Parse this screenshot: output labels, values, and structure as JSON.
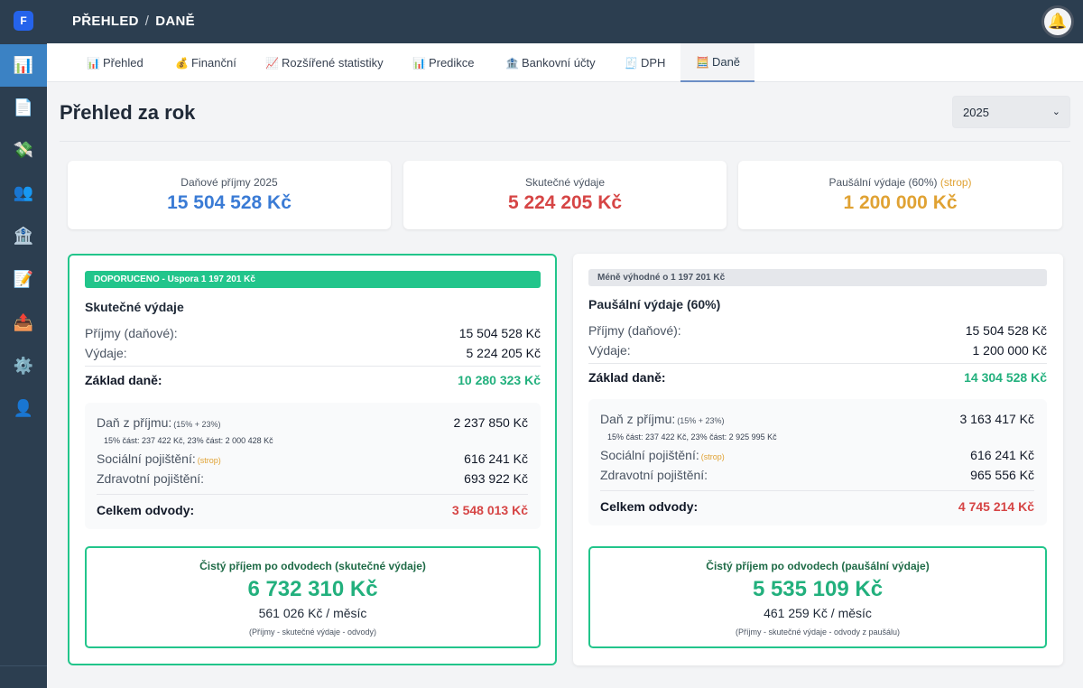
{
  "app": {
    "logo_letter": "F"
  },
  "header": {
    "crumb_1": "PŘEHLED",
    "separator": "/",
    "crumb_2": "DANĚ",
    "bell_icon": "🔔"
  },
  "sidebar": [
    {
      "icon": "📊",
      "name": "chart-icon",
      "active": true
    },
    {
      "icon": "📄",
      "name": "document-icon"
    },
    {
      "icon": "💸",
      "name": "money-icon"
    },
    {
      "icon": "👥",
      "name": "users-icon"
    },
    {
      "icon": "🏦",
      "name": "bank-icon"
    },
    {
      "icon": "📝",
      "name": "memo-icon"
    },
    {
      "icon": "📤",
      "name": "outbox-icon"
    },
    {
      "icon": "⚙️",
      "name": "gear-icon"
    },
    {
      "icon": "👤",
      "name": "user-icon"
    }
  ],
  "tabs": [
    {
      "icon": "📊",
      "label": "Přehled"
    },
    {
      "icon": "💰",
      "label": "Finanční"
    },
    {
      "icon": "📈",
      "label": "Rozšířené statistiky"
    },
    {
      "icon": "📊",
      "label": "Predikce"
    },
    {
      "icon": "🏦",
      "label": "Bankovní účty"
    },
    {
      "icon": "🧾",
      "label": "DPH"
    },
    {
      "icon": "🧮",
      "label": "Daně",
      "active": true
    }
  ],
  "page": {
    "title": "Přehled za rok",
    "year_selected": "2025",
    "chevron": "⌄"
  },
  "stats": {
    "income": {
      "label": "Daňové příjmy 2025",
      "value": "15 504 528 Kč",
      "color": "#3a7bd5"
    },
    "actual": {
      "label": "Skutečné výdaje",
      "value": "5 224 205 Kč",
      "color": "#d64545"
    },
    "flat": {
      "label": "Paušální výdaje (60%)",
      "label_extra": "(strop)",
      "value": "1 200 000 Kč",
      "color": "#e0a233"
    }
  },
  "left": {
    "badge": "DOPORUCENO - Uspora 1 197 201 Kč",
    "title": "Skutečné výdaje",
    "income_label": "Příjmy (daňové):",
    "income_value": "15 504 528 Kč",
    "expense_label": "Výdaje:",
    "expense_value": "5 224 205 Kč",
    "base_label": "Základ daně:",
    "base_value": "10 280 323 Kč",
    "tax_label": "Daň z příjmu:",
    "tax_rates": "(15% + 23%)",
    "tax_value": "2 237 850 Kč",
    "tax_note": "15% část: 237 422 Kč, 23% část: 2 000 428 Kč",
    "social_label": "Sociální pojištění:",
    "social_cap": "(strop)",
    "social_value": "616 241 Kč",
    "health_label": "Zdravotní pojištění:",
    "health_value": "693 922 Kč",
    "total_label": "Celkem odvody:",
    "total_value": "3 548 013 Kč",
    "net_title": "Čistý příjem po odvodech (skutečné výdaje)",
    "net_value": "6 732 310 Kč",
    "net_month": "561 026 Kč / měsíc",
    "net_formula": "(Příjmy - skutečné výdaje - odvody)"
  },
  "right": {
    "badge": "Méně výhodné o 1 197 201 Kč",
    "title": "Paušální výdaje (60%)",
    "income_label": "Příjmy (daňové):",
    "income_value": "15 504 528 Kč",
    "expense_label": "Výdaje:",
    "expense_value": "1 200 000 Kč",
    "base_label": "Základ daně:",
    "base_value": "14 304 528 Kč",
    "tax_label": "Daň z příjmu:",
    "tax_rates": "(15% + 23%)",
    "tax_value": "3 163 417 Kč",
    "tax_note": "15% část: 237 422 Kč, 23% část: 2 925 995 Kč",
    "social_label": "Sociální pojištění:",
    "social_cap": "(strop)",
    "social_value": "616 241 Kč",
    "health_label": "Zdravotní pojištění:",
    "health_value": "965 556 Kč",
    "total_label": "Celkem odvody:",
    "total_value": "4 745 214 Kč",
    "net_title": "Čistý příjem po odvodech (paušální výdaje)",
    "net_value": "5 535 109 Kč",
    "net_month": "461 259 Kč / měsíc",
    "net_formula": "(Příjmy - skutečné výdaje - odvody z paušálu)"
  },
  "colors": {
    "green": "#22b07d",
    "red": "#d64545",
    "badge_green": "#22c58b",
    "badge_gray": "#e5e7eb"
  }
}
